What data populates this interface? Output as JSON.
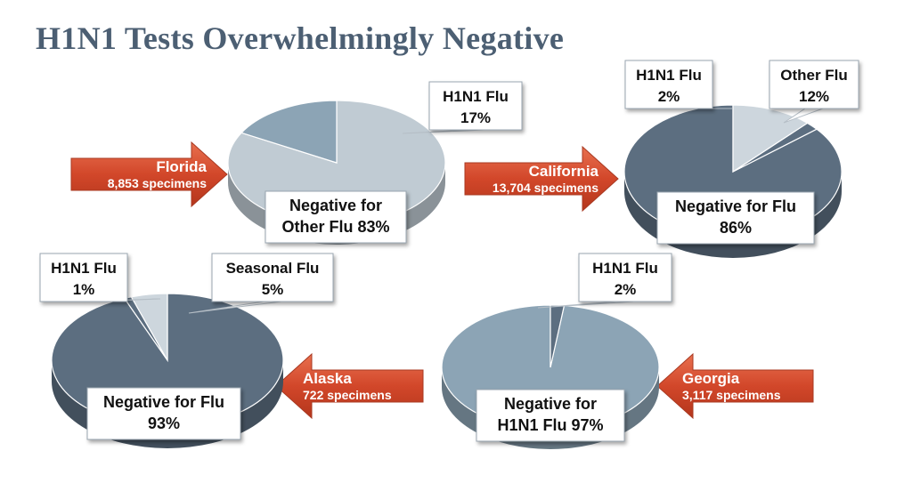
{
  "title": "H1N1 Tests Overwhelmingly Negative",
  "colors": {
    "title": "#4c5f73",
    "arrow": "#d2472a",
    "pie_light": "#c0cbd3",
    "pie_mid": "#8ca4b5",
    "pie_dark": "#5c6e80",
    "pie_pale": "#cdd6dd"
  },
  "chart_data": [
    {
      "type": "pie",
      "state": "Florida",
      "specimens": "8,853 specimens",
      "slices": [
        {
          "label_lines": [
            "Negative for",
            "Other Flu 83%"
          ],
          "value": 83
        },
        {
          "label_lines": [
            "H1N1 Flu",
            "17%"
          ],
          "value": 17
        }
      ]
    },
    {
      "type": "pie",
      "state": "California",
      "specimens": "13,704 specimens",
      "slices": [
        {
          "label_lines": [
            "Negative for Flu",
            "86%"
          ],
          "value": 86
        },
        {
          "label_lines": [
            "H1N1 Flu",
            "2%"
          ],
          "value": 2
        },
        {
          "label_lines": [
            "Other Flu",
            "12%"
          ],
          "value": 12
        }
      ]
    },
    {
      "type": "pie",
      "state": "Alaska",
      "specimens": "722 specimens",
      "slices": [
        {
          "label_lines": [
            "Negative for Flu",
            "93%"
          ],
          "value": 93
        },
        {
          "label_lines": [
            "H1N1 Flu",
            "1%"
          ],
          "value": 1
        },
        {
          "label_lines": [
            "Seasonal Flu",
            "5%"
          ],
          "value": 5
        }
      ]
    },
    {
      "type": "pie",
      "state": "Georgia",
      "specimens": "3,117 specimens",
      "slices": [
        {
          "label_lines": [
            "Negative for",
            "H1N1 Flu 97%"
          ],
          "value": 97
        },
        {
          "label_lines": [
            "H1N1 Flu",
            "2%"
          ],
          "value": 2
        }
      ]
    }
  ]
}
